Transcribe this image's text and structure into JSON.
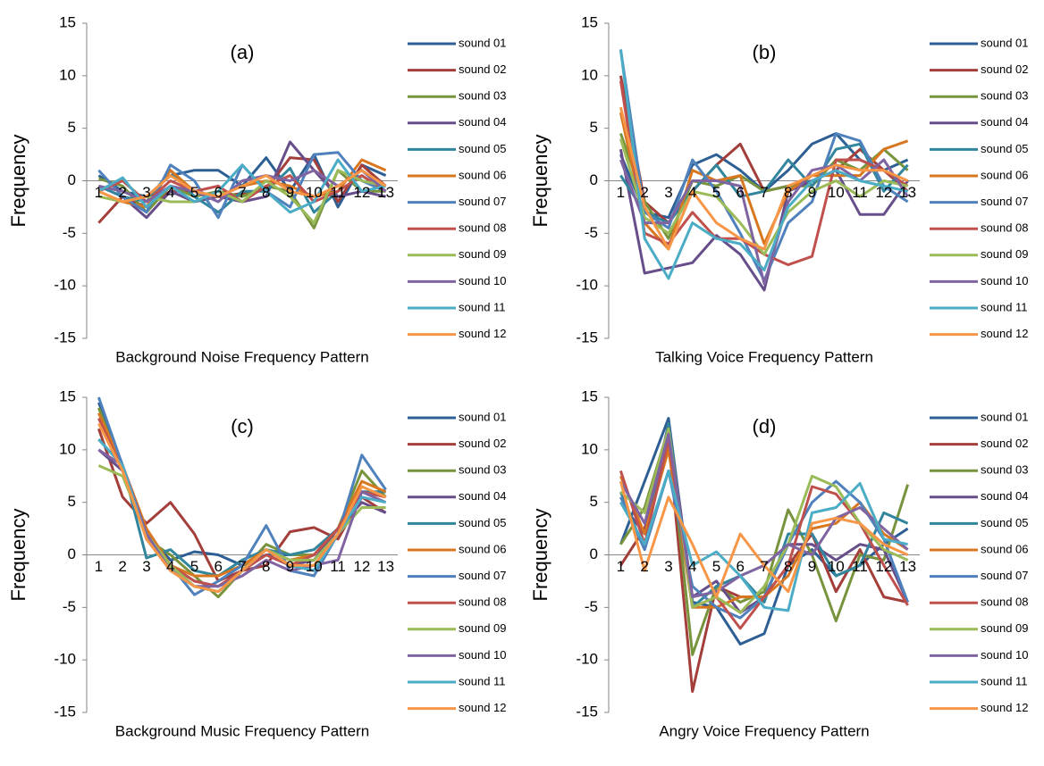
{
  "chart_data": [
    {
      "type": "line",
      "title": "(a)",
      "x_label": "Background Noise Frequency Pattern",
      "y_label": "Frequency",
      "categories": [
        "1",
        "2",
        "3",
        "4",
        "5",
        "6",
        "7",
        "8",
        "9",
        "10",
        "11",
        "12",
        "13"
      ],
      "ylim": [
        -15,
        15
      ],
      "yticks": [
        -15,
        -10,
        -5,
        0,
        5,
        10,
        15
      ],
      "series": [
        {
          "name": "sound 01",
          "color": "#2e5f94",
          "values": [
            0.5,
            -1,
            -1.5,
            0.5,
            1,
            1,
            -0.5,
            2.2,
            -1,
            2.5,
            -2.5,
            1.5,
            0.5
          ]
        },
        {
          "name": "sound 02",
          "color": "#a33e3a",
          "values": [
            -4,
            -1.5,
            -2.5,
            -1,
            -1,
            -1.5,
            -1.2,
            -0.8,
            2.2,
            2,
            -2,
            1.5,
            -0.5
          ]
        },
        {
          "name": "sound 03",
          "color": "#77933c",
          "values": [
            0.2,
            -0.5,
            -3,
            -0.5,
            -1.5,
            -1,
            -1.5,
            -0.5,
            -1,
            -4.5,
            1,
            -1,
            -1
          ]
        },
        {
          "name": "sound 04",
          "color": "#674e8a",
          "values": [
            -0.5,
            -1.5,
            -3.5,
            -1,
            -2,
            -1.5,
            -2,
            -1.5,
            3.7,
            1,
            -1.5,
            -1,
            -1.5
          ]
        },
        {
          "name": "sound 05",
          "color": "#31859c",
          "values": [
            -0.5,
            -1.5,
            -2,
            1,
            -1.5,
            -3,
            -1,
            -1,
            1.2,
            -3,
            -1,
            0.5,
            -1
          ]
        },
        {
          "name": "sound 06",
          "color": "#d8771f",
          "values": [
            -1,
            -2,
            -2.5,
            1,
            -1,
            -1.5,
            -0.5,
            0,
            -0.5,
            -1.5,
            -1,
            2,
            1
          ]
        },
        {
          "name": "sound 07",
          "color": "#4f81bd",
          "values": [
            1,
            -1.5,
            -3,
            1.5,
            0,
            -3.5,
            1.5,
            -1,
            -2.5,
            2.5,
            2.7,
            0,
            -1
          ]
        },
        {
          "name": "sound 08",
          "color": "#c0504d",
          "values": [
            -1,
            0,
            -2,
            0,
            -1,
            -0.5,
            -2,
            -0.5,
            0.5,
            -2,
            -1,
            0.5,
            -1
          ]
        },
        {
          "name": "sound 09",
          "color": "#9bbb59",
          "values": [
            -1.5,
            -2,
            -1.5,
            -2,
            -2,
            -1,
            -2,
            0,
            -1.5,
            -4,
            1,
            0,
            -0.5
          ]
        },
        {
          "name": "sound 10",
          "color": "#8064a2",
          "values": [
            -0.5,
            -1,
            -2,
            -0.5,
            -1,
            -2,
            0,
            0.5,
            0,
            1,
            -0.5,
            1,
            -1
          ]
        },
        {
          "name": "sound 11",
          "color": "#4bacc6",
          "values": [
            -1,
            0.3,
            -2.5,
            -0.5,
            -2,
            -1,
            1.5,
            -1,
            -3,
            -2,
            2,
            -1,
            -0.5
          ]
        },
        {
          "name": "sound 12",
          "color": "#f79646",
          "values": [
            -1,
            -2,
            -1.5,
            0.5,
            -1,
            -1.5,
            -0.5,
            0.5,
            -1,
            -1.5,
            -0.5,
            1,
            -0.5
          ]
        }
      ]
    },
    {
      "type": "line",
      "title": "(b)",
      "x_label": "Talking Voice Frequency Pattern",
      "y_label": "Frequency",
      "categories": [
        "1",
        "2",
        "3",
        "4",
        "5",
        "6",
        "7",
        "8",
        "9",
        "10",
        "11",
        "12",
        "13"
      ],
      "ylim": [
        -15,
        15
      ],
      "yticks": [
        -15,
        -10,
        -5,
        0,
        5,
        10,
        15
      ],
      "series": [
        {
          "name": "sound 01",
          "color": "#2e5f94",
          "values": [
            2.5,
            -3,
            -3.5,
            1.5,
            2.5,
            1,
            -1,
            1,
            3.5,
            4.5,
            2,
            1,
            2
          ]
        },
        {
          "name": "sound 02",
          "color": "#a33e3a",
          "values": [
            10,
            -2,
            -4,
            -1,
            1.5,
            3.5,
            -1,
            -0.5,
            0,
            1,
            3,
            1,
            -1
          ]
        },
        {
          "name": "sound 03",
          "color": "#77933c",
          "values": [
            4.5,
            -2,
            -5.5,
            0,
            -0.5,
            0.5,
            -1,
            -0.5,
            -0.5,
            2,
            1,
            3,
            1
          ]
        },
        {
          "name": "sound 04",
          "color": "#674e8a",
          "values": [
            3,
            -8.8,
            -8.3,
            -7.8,
            -5.2,
            -7,
            -10.4,
            -1,
            0,
            1,
            -3.2,
            -3.2,
            0
          ]
        },
        {
          "name": "sound 05",
          "color": "#31859c",
          "values": [
            0.5,
            -3,
            -4,
            -1,
            1.5,
            -1.5,
            -1,
            2,
            -0.5,
            3,
            3.5,
            -1,
            1.5
          ]
        },
        {
          "name": "sound 06",
          "color": "#d8771f",
          "values": [
            6.5,
            -4,
            -6.5,
            1,
            0,
            0.5,
            -6,
            -1,
            0.5,
            0.5,
            0.5,
            3,
            3.8
          ]
        },
        {
          "name": "sound 07",
          "color": "#4f81bd",
          "values": [
            12.5,
            -3,
            -4.5,
            2,
            -1,
            -5,
            -9.5,
            -4,
            -2,
            4.5,
            3.8,
            -0.5,
            -2
          ]
        },
        {
          "name": "sound 08",
          "color": "#c0504d",
          "values": [
            9.5,
            -5,
            -6,
            -3,
            -5.5,
            -5.5,
            -7,
            -8,
            -7.2,
            2,
            2,
            1,
            -0.5
          ]
        },
        {
          "name": "sound 09",
          "color": "#9bbb59",
          "values": [
            4,
            -3.5,
            -5,
            -1,
            -1.5,
            -4,
            -7,
            -3,
            -1,
            0,
            -1.5,
            0,
            -0.5
          ]
        },
        {
          "name": "sound 10",
          "color": "#8064a2",
          "values": [
            2,
            -4,
            -4,
            0,
            0,
            -0.5,
            -9.8,
            -2,
            1,
            1.5,
            0,
            2,
            -1.5
          ]
        },
        {
          "name": "sound 11",
          "color": "#4bacc6",
          "values": [
            12.5,
            -5.5,
            -9.3,
            -4,
            -5.5,
            -6,
            -8.5,
            -2.5,
            0,
            1,
            0,
            -0.5,
            -1
          ]
        },
        {
          "name": "sound 12",
          "color": "#f79646",
          "values": [
            7,
            -2.5,
            -6.5,
            -1,
            -4,
            -5.5,
            -6.5,
            -0.5,
            0.5,
            1.5,
            1,
            1,
            0
          ]
        }
      ]
    },
    {
      "type": "line",
      "title": "(c)",
      "x_label": "Background Music Frequency Pattern",
      "y_label": "Frequency",
      "categories": [
        "1",
        "2",
        "3",
        "4",
        "5",
        "6",
        "7",
        "8",
        "9",
        "10",
        "11",
        "12",
        "13"
      ],
      "ylim": [
        -15,
        15
      ],
      "yticks": [
        -15,
        -10,
        -5,
        0,
        5,
        10,
        15
      ],
      "series": [
        {
          "name": "sound 01",
          "color": "#2e5f94",
          "values": [
            14.5,
            8.5,
            2,
            -0.5,
            0.3,
            0,
            -1,
            0,
            0,
            0,
            2.5,
            6,
            6
          ]
        },
        {
          "name": "sound 02",
          "color": "#a33e3a",
          "values": [
            12,
            5.5,
            3,
            5,
            2,
            -2.5,
            -1.5,
            -1,
            2.2,
            2.6,
            1.5,
            5.5,
            4
          ]
        },
        {
          "name": "sound 03",
          "color": "#77933c",
          "values": [
            14,
            8,
            1.5,
            0,
            -2,
            -4,
            -1.5,
            1,
            0,
            0,
            2.5,
            8,
            5.5
          ]
        },
        {
          "name": "sound 04",
          "color": "#674e8a",
          "values": [
            10,
            8,
            2,
            -1,
            -2.5,
            -3,
            -1.5,
            0,
            -1,
            -0.5,
            2.5,
            5,
            4
          ]
        },
        {
          "name": "sound 05",
          "color": "#31859c",
          "values": [
            11,
            8.5,
            -0.3,
            0.5,
            -1.5,
            -2,
            -0.5,
            0.5,
            0,
            0.5,
            2.5,
            6,
            6
          ]
        },
        {
          "name": "sound 06",
          "color": "#d8771f",
          "values": [
            13.5,
            8.5,
            2.5,
            -1,
            -2,
            -2,
            -1,
            0.5,
            -0.5,
            0,
            2.5,
            7,
            6
          ]
        },
        {
          "name": "sound 07",
          "color": "#4f81bd",
          "values": [
            15,
            8.5,
            2,
            -1,
            -3.8,
            -2.5,
            -1,
            2.8,
            -1.5,
            -2,
            2,
            9.5,
            6.2
          ]
        },
        {
          "name": "sound 08",
          "color": "#c0504d",
          "values": [
            13,
            8,
            2,
            -1,
            -2.5,
            -3,
            -1.5,
            0,
            -1,
            0,
            2.5,
            6,
            5.5
          ]
        },
        {
          "name": "sound 09",
          "color": "#9bbb59",
          "values": [
            8.5,
            7.5,
            2,
            -1,
            -3,
            -3.5,
            -1.5,
            0.5,
            -0.5,
            -0.5,
            2,
            4.5,
            4.5
          ]
        },
        {
          "name": "sound 10",
          "color": "#8064a2",
          "values": [
            10,
            8.5,
            2,
            -1.5,
            -3,
            -3,
            -2,
            -0.5,
            -1.5,
            -1,
            -0.5,
            6,
            5
          ]
        },
        {
          "name": "sound 11",
          "color": "#4bacc6",
          "values": [
            11,
            8.5,
            1.5,
            -1.5,
            -3,
            -3.5,
            -1.5,
            0.5,
            -1,
            -1.5,
            2,
            5.5,
            5
          ]
        },
        {
          "name": "sound 12",
          "color": "#f79646",
          "values": [
            12.5,
            8,
            1.5,
            -1.5,
            -3,
            -3.5,
            -1.5,
            0.5,
            -1,
            -1,
            2,
            6.5,
            5.5
          ]
        }
      ]
    },
    {
      "type": "line",
      "title": "(d)",
      "x_label": "Angry Voice Frequency Pattern",
      "y_label": "Frequency",
      "categories": [
        "1",
        "2",
        "3",
        "4",
        "5",
        "6",
        "7",
        "8",
        "9",
        "10",
        "11",
        "12",
        "13"
      ],
      "ylim": [
        -15,
        15
      ],
      "yticks": [
        -15,
        -10,
        -5,
        0,
        5,
        10,
        15
      ],
      "series": [
        {
          "name": "sound 01",
          "color": "#2e5f94",
          "values": [
            1,
            7,
            13,
            -4.5,
            -5,
            -8.5,
            -7.5,
            -1,
            0.5,
            -2,
            -1,
            1,
            2.5
          ]
        },
        {
          "name": "sound 02",
          "color": "#a33e3a",
          "values": [
            -1,
            2.5,
            11,
            -13,
            -3,
            -4,
            -4,
            -1,
            2,
            -3.5,
            0.5,
            -4,
            -4.5
          ]
        },
        {
          "name": "sound 03",
          "color": "#77933c",
          "values": [
            1,
            4.5,
            12,
            -9.5,
            -3,
            -4.5,
            -3.5,
            4.3,
            0,
            -6.3,
            0,
            -0.5,
            6.7
          ]
        },
        {
          "name": "sound 04",
          "color": "#674e8a",
          "values": [
            5,
            2,
            12.5,
            -4,
            -2.5,
            -5.5,
            -4,
            1,
            1,
            -0.5,
            1,
            0.5,
            -4.5
          ]
        },
        {
          "name": "sound 05",
          "color": "#31859c",
          "values": [
            6,
            0.5,
            12.5,
            -5,
            -3,
            -2,
            -4.5,
            2,
            2,
            -2,
            -1,
            4,
            3
          ]
        },
        {
          "name": "sound 06",
          "color": "#d8771f",
          "values": [
            7.5,
            2,
            10,
            -5,
            -5,
            -4,
            -4,
            -2,
            2.5,
            3,
            5,
            2,
            0.5
          ]
        },
        {
          "name": "sound 07",
          "color": "#4f81bd",
          "values": [
            5.5,
            0.5,
            8,
            -3,
            -5,
            -6,
            -4,
            1,
            5,
            7,
            5,
            1.5,
            -4.5
          ]
        },
        {
          "name": "sound 08",
          "color": "#c0504d",
          "values": [
            8,
            1,
            11,
            -5,
            -4,
            -7,
            -4,
            -1,
            6.5,
            5.8,
            3,
            -1,
            -4.8
          ]
        },
        {
          "name": "sound 09",
          "color": "#9bbb59",
          "values": [
            6,
            4,
            12,
            -5,
            -4,
            -5.5,
            -3,
            1,
            7.5,
            6.5,
            3,
            0.5,
            -0.5
          ]
        },
        {
          "name": "sound 10",
          "color": "#8064a2",
          "values": [
            7,
            3,
            11.5,
            -4,
            -3.5,
            -2,
            -1,
            1,
            0,
            3.5,
            4.5,
            2.5,
            0.5
          ]
        },
        {
          "name": "sound 11",
          "color": "#4bacc6",
          "values": [
            5,
            1,
            8,
            -1,
            0.3,
            -2,
            -5,
            -5.3,
            4,
            4.5,
            6.8,
            1.5,
            1
          ]
        },
        {
          "name": "sound 12",
          "color": "#f79646",
          "values": [
            7,
            -1.5,
            5.5,
            1,
            -4,
            2,
            -1,
            -3.5,
            3,
            3.5,
            3,
            1,
            0
          ]
        }
      ]
    }
  ]
}
